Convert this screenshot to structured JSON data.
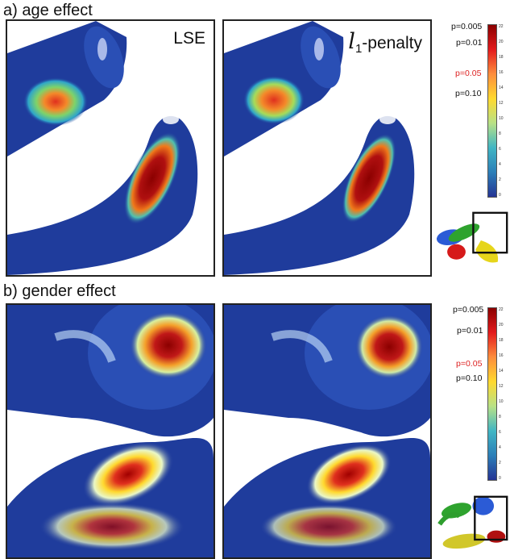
{
  "figure": {
    "section_a": {
      "label": "a) age effect",
      "method_labels": {
        "lse": "LSE",
        "l1_symbol": "l",
        "l1_sub": "1",
        "l1_rest": "-penalty"
      }
    },
    "section_b": {
      "label": "b) gender effect"
    },
    "colorbar": {
      "ticks": [
        "22",
        "20",
        "18",
        "16",
        "14",
        "12",
        "10",
        "8",
        "6",
        "4",
        "2",
        "0"
      ],
      "gradient": [
        "#8b0000",
        "#e31a1c",
        "#fd8d3c",
        "#ffd92f",
        "#b8e186",
        "#41b6c4",
        "#2c7fb8",
        "#253494"
      ]
    },
    "p_values": {
      "p005": "p=0.005",
      "p01": "p=0.01",
      "p05": "p=0.05",
      "p10": "p=0.10"
    },
    "colors": {
      "surface_blue": "#1f3c9c",
      "significant_red": "#b01010",
      "highlight_red": "#d22222",
      "inset_frame": "#111111"
    }
  }
}
